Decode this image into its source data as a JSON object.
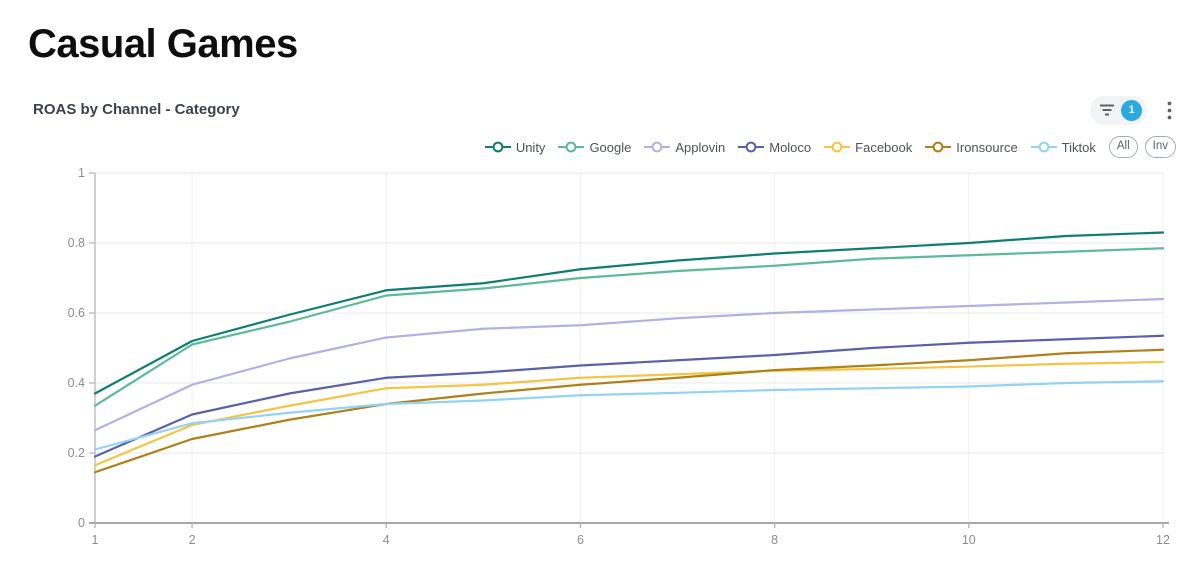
{
  "page": {
    "title": "Casual Games"
  },
  "card": {
    "subtitle": "ROAS by Channel - Category",
    "filter": {
      "badge_count": "1",
      "badge_color": "#2ba9e0"
    },
    "buttons": [
      {
        "label": "All"
      },
      {
        "label": "Inv"
      }
    ]
  },
  "chart_data": {
    "type": "line",
    "title": "ROAS by Channel - Category",
    "xlabel": "",
    "ylabel": "",
    "xlim": [
      1,
      12
    ],
    "ylim": [
      0,
      1
    ],
    "grid": true,
    "legend_position": "top-right",
    "x": [
      1,
      2,
      3,
      4,
      5,
      6,
      7,
      8,
      9,
      10,
      11,
      12
    ],
    "x_tick_values": [
      1,
      2,
      4,
      6,
      8,
      10,
      12
    ],
    "x_tick_labels": [
      "1",
      "2",
      "4",
      "6",
      "8",
      "10",
      "12"
    ],
    "y_tick_values": [
      0,
      0.2,
      0.4,
      0.6,
      0.8,
      1
    ],
    "y_tick_labels": [
      "0",
      "0.2",
      "0.4",
      "0.6",
      "0.8",
      "1"
    ],
    "x_gridlines": [
      2,
      4,
      6,
      8,
      10,
      12
    ],
    "series": [
      {
        "name": "Unity",
        "color": "#0d7e71",
        "values": [
          0.37,
          0.52,
          0.595,
          0.665,
          0.685,
          0.725,
          0.75,
          0.77,
          0.785,
          0.8,
          0.82,
          0.83
        ]
      },
      {
        "name": "Google",
        "color": "#5abb96",
        "values": [
          0.335,
          0.51,
          0.575,
          0.65,
          0.67,
          0.7,
          0.72,
          0.735,
          0.755,
          0.765,
          0.775,
          0.785
        ]
      },
      {
        "name": "Applovin",
        "color": "#b3b1e2",
        "values": [
          0.265,
          0.395,
          0.47,
          0.53,
          0.555,
          0.565,
          0.585,
          0.6,
          0.61,
          0.62,
          0.63,
          0.64
        ]
      },
      {
        "name": "Moloco",
        "color": "#5a60ad",
        "values": [
          0.19,
          0.31,
          0.37,
          0.415,
          0.43,
          0.45,
          0.465,
          0.48,
          0.5,
          0.515,
          0.525,
          0.535
        ]
      },
      {
        "name": "Facebook",
        "color": "#f5c445",
        "values": [
          0.165,
          0.28,
          0.335,
          0.385,
          0.395,
          0.415,
          0.425,
          0.435,
          0.44,
          0.447,
          0.455,
          0.46
        ]
      },
      {
        "name": "Ironsource",
        "color": "#b08018",
        "values": [
          0.145,
          0.24,
          0.295,
          0.34,
          0.37,
          0.395,
          0.415,
          0.437,
          0.45,
          0.465,
          0.485,
          0.495
        ]
      },
      {
        "name": "Tiktok",
        "color": "#90d3f5",
        "values": [
          0.21,
          0.285,
          0.315,
          0.34,
          0.35,
          0.365,
          0.372,
          0.38,
          0.385,
          0.39,
          0.4,
          0.405
        ]
      }
    ]
  }
}
